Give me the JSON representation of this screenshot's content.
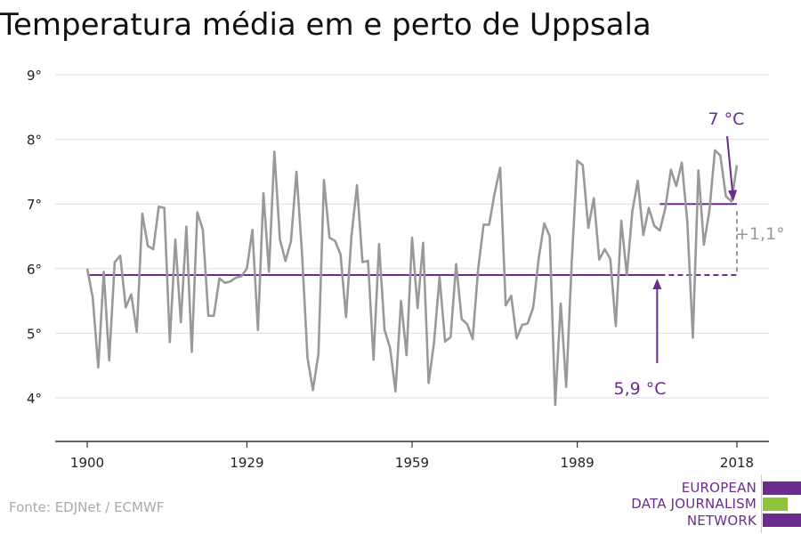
{
  "title": "Temperatura média em e perto de Uppsala",
  "source": "Fonte: EDJNet / ECMWF",
  "logo": {
    "lines": [
      "EUROPEAN",
      "DATA JOURNALISM",
      "NETWORK"
    ],
    "colors": [
      "#6a2d8e",
      "#8fc43a",
      "#6a2d8e"
    ]
  },
  "colors": {
    "series": "#999999",
    "accent": "#6a2d8e",
    "grid": "#dddddd",
    "axis": "#333333"
  },
  "annotations": {
    "baseline_label": "5,9 °C",
    "recent_label": "7 °C",
    "diff_label": "+1,1°"
  },
  "chart_data": {
    "type": "line",
    "title": "Temperatura média em e perto de Uppsala",
    "xlim": [
      1900,
      2018
    ],
    "ylim": [
      3.5,
      9
    ],
    "x_ticks": [
      1900,
      1929,
      1959,
      1989,
      2018
    ],
    "y_ticks": [
      4,
      5,
      6,
      7,
      8,
      9
    ],
    "y_tick_labels": [
      "4°",
      "5°",
      "6°",
      "7°",
      "8°",
      "9°"
    ],
    "grid": true,
    "baseline": {
      "value": 5.9,
      "from": 1900,
      "to": 2018,
      "solid_to": 2004
    },
    "recent_average": {
      "value": 7.0,
      "from": 2004,
      "to": 2018
    },
    "series": [
      {
        "x": [
          1900,
          1901,
          1902,
          1903,
          1904,
          1905,
          1906,
          1907,
          1908,
          1909,
          1910,
          1911,
          1912,
          1913,
          1914,
          1915,
          1916,
          1917,
          1918,
          1919,
          1920,
          1921,
          1922,
          1923,
          1924,
          1925,
          1926,
          1927,
          1928,
          1929,
          1930,
          1931,
          1932,
          1933,
          1934,
          1935,
          1936,
          1937,
          1938,
          1939,
          1940,
          1941,
          1942,
          1943,
          1944,
          1945,
          1946,
          1947,
          1948,
          1949,
          1950,
          1951,
          1952,
          1953,
          1954,
          1955,
          1956,
          1957,
          1958,
          1959,
          1960,
          1961,
          1962,
          1963,
          1964,
          1965,
          1966,
          1967,
          1968,
          1969,
          1970,
          1971,
          1972,
          1973,
          1974,
          1975,
          1976,
          1977,
          1978,
          1979,
          1980,
          1981,
          1982,
          1983,
          1984,
          1985,
          1986,
          1987,
          1988,
          1989,
          1990,
          1991,
          1992,
          1993,
          1994,
          1995,
          1996,
          1997,
          1998,
          1999,
          2000,
          2001,
          2002,
          2003,
          2004,
          2005,
          2006,
          2007,
          2008,
          2009,
          2010,
          2011,
          2012,
          2013,
          2014,
          2015,
          2016,
          2017,
          2018
        ],
        "values": [
          6.0,
          5.55,
          4.47,
          5.95,
          4.58,
          6.1,
          6.2,
          5.4,
          5.6,
          5.02,
          6.85,
          6.35,
          6.3,
          6.96,
          6.94,
          4.86,
          6.45,
          5.17,
          6.65,
          4.71,
          6.87,
          6.6,
          5.27,
          5.27,
          5.85,
          5.78,
          5.8,
          5.86,
          5.88,
          6.0,
          6.6,
          5.05,
          7.17,
          5.95,
          7.81,
          6.45,
          6.12,
          6.42,
          7.5,
          6.25,
          4.62,
          4.12,
          4.68,
          7.37,
          6.48,
          6.43,
          6.22,
          5.25,
          6.5,
          7.29,
          6.1,
          6.12,
          4.59,
          6.38,
          5.05,
          4.77,
          4.1,
          5.5,
          4.66,
          6.48,
          5.39,
          6.4,
          4.23,
          4.86,
          5.87,
          4.87,
          4.94,
          6.07,
          5.22,
          5.14,
          4.91,
          5.99,
          6.68,
          6.68,
          7.17,
          7.56,
          5.43,
          5.58,
          4.92,
          5.13,
          5.15,
          5.4,
          6.16,
          6.7,
          6.5,
          3.89,
          5.46,
          4.17,
          6.1,
          7.67,
          7.6,
          6.63,
          7.09,
          6.14,
          6.3,
          6.15,
          5.11,
          6.74,
          5.9,
          6.89,
          7.36,
          6.52,
          6.94,
          6.66,
          6.59,
          6.94,
          7.53,
          7.28,
          7.64,
          6.72,
          4.93,
          7.52,
          6.37,
          6.9,
          7.83,
          7.75,
          7.12,
          7.04,
          7.6
        ]
      }
    ]
  }
}
